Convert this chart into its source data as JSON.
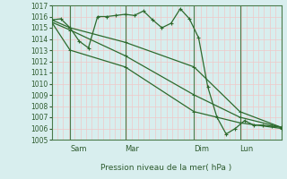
{
  "title": "Pression niveau de la mer( hPa )",
  "bg_color": "#d8eeee",
  "grid_color": "#f0c8c8",
  "line_color": "#2d6a2d",
  "vline_color": "#4a7a4a",
  "ylim": [
    1005,
    1017
  ],
  "yticks": [
    1005,
    1006,
    1007,
    1008,
    1009,
    1010,
    1011,
    1012,
    1013,
    1014,
    1015,
    1016,
    1017
  ],
  "label_color": "#2d5a2d",
  "day_labels": [
    "Sam",
    "Mar",
    "Dim",
    "Lun"
  ],
  "day_positions": [
    0.08,
    0.32,
    0.62,
    0.82
  ],
  "series": [
    {
      "x": [
        0,
        0.04,
        0.08,
        0.12,
        0.16,
        0.2,
        0.24,
        0.28,
        0.32,
        0.36,
        0.4,
        0.44,
        0.48,
        0.52,
        0.56,
        0.6,
        0.64,
        0.68,
        0.72,
        0.76,
        0.8,
        0.84,
        0.88,
        0.92,
        0.96,
        1.0
      ],
      "y": [
        1015.7,
        1015.8,
        1015.0,
        1013.8,
        1013.2,
        1016.0,
        1016.0,
        1016.1,
        1016.2,
        1016.1,
        1016.5,
        1015.7,
        1015.0,
        1015.4,
        1016.7,
        1015.8,
        1014.1,
        1009.7,
        1007.0,
        1005.5,
        1006.0,
        1006.7,
        1006.3,
        1006.3,
        1006.2,
        1006.1
      ]
    },
    {
      "x": [
        0,
        0.08,
        0.32,
        0.62,
        0.82,
        1.0
      ],
      "y": [
        1015.7,
        1015.0,
        1013.7,
        1011.5,
        1007.5,
        1006.1
      ]
    },
    {
      "x": [
        0,
        0.08,
        0.32,
        0.62,
        0.82,
        1.0
      ],
      "y": [
        1015.5,
        1014.8,
        1012.5,
        1009.0,
        1007.0,
        1006.1
      ]
    },
    {
      "x": [
        0,
        0.08,
        0.32,
        0.62,
        0.82,
        1.0
      ],
      "y": [
        1015.5,
        1013.0,
        1011.5,
        1007.5,
        1006.5,
        1006.0
      ]
    }
  ],
  "vline_positions": [
    0.08,
    0.32,
    0.62,
    0.82
  ]
}
